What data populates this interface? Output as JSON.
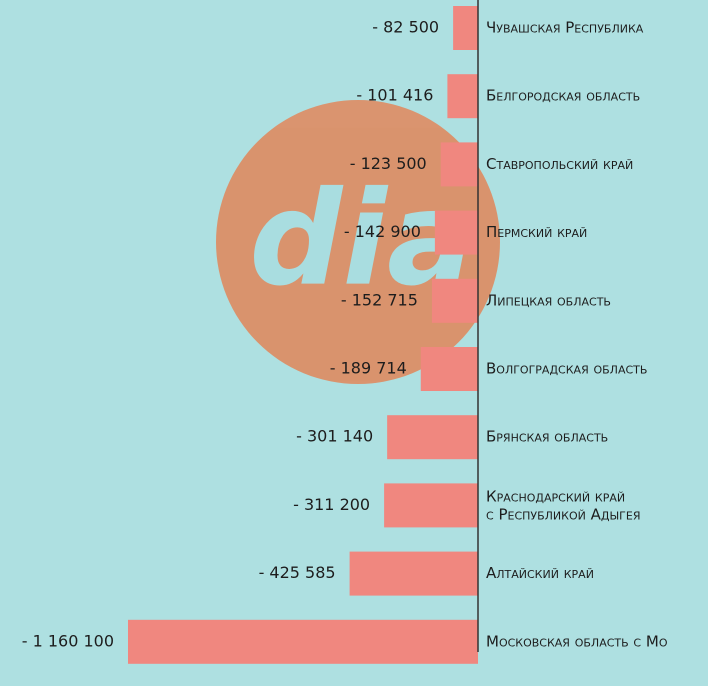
{
  "chart_data": {
    "type": "bar",
    "orientation": "horizontal",
    "logo": "dia",
    "categories": [
      "Чувашская Республика",
      "Белгородская область",
      "Ставропольский край",
      "Пермский край",
      "Липецкая область",
      "Волгоградская область",
      "Брянская область",
      "Краснодарский край\nс Республикой Адыгея",
      "Алтайский край",
      "Московская область с Мо"
    ],
    "values": [
      -82500,
      -101416,
      -123500,
      -142900,
      -152715,
      -189714,
      -301140,
      -311200,
      -425585,
      -1160100
    ],
    "value_labels": [
      "- 82 500",
      "- 101 416",
      "- 123 500",
      "- 142 900",
      "- 152 715",
      "- 189 714",
      "- 301 140",
      "- 311 200",
      "- 425 585",
      "- 1 160 100"
    ],
    "color": "#f0877f"
  }
}
